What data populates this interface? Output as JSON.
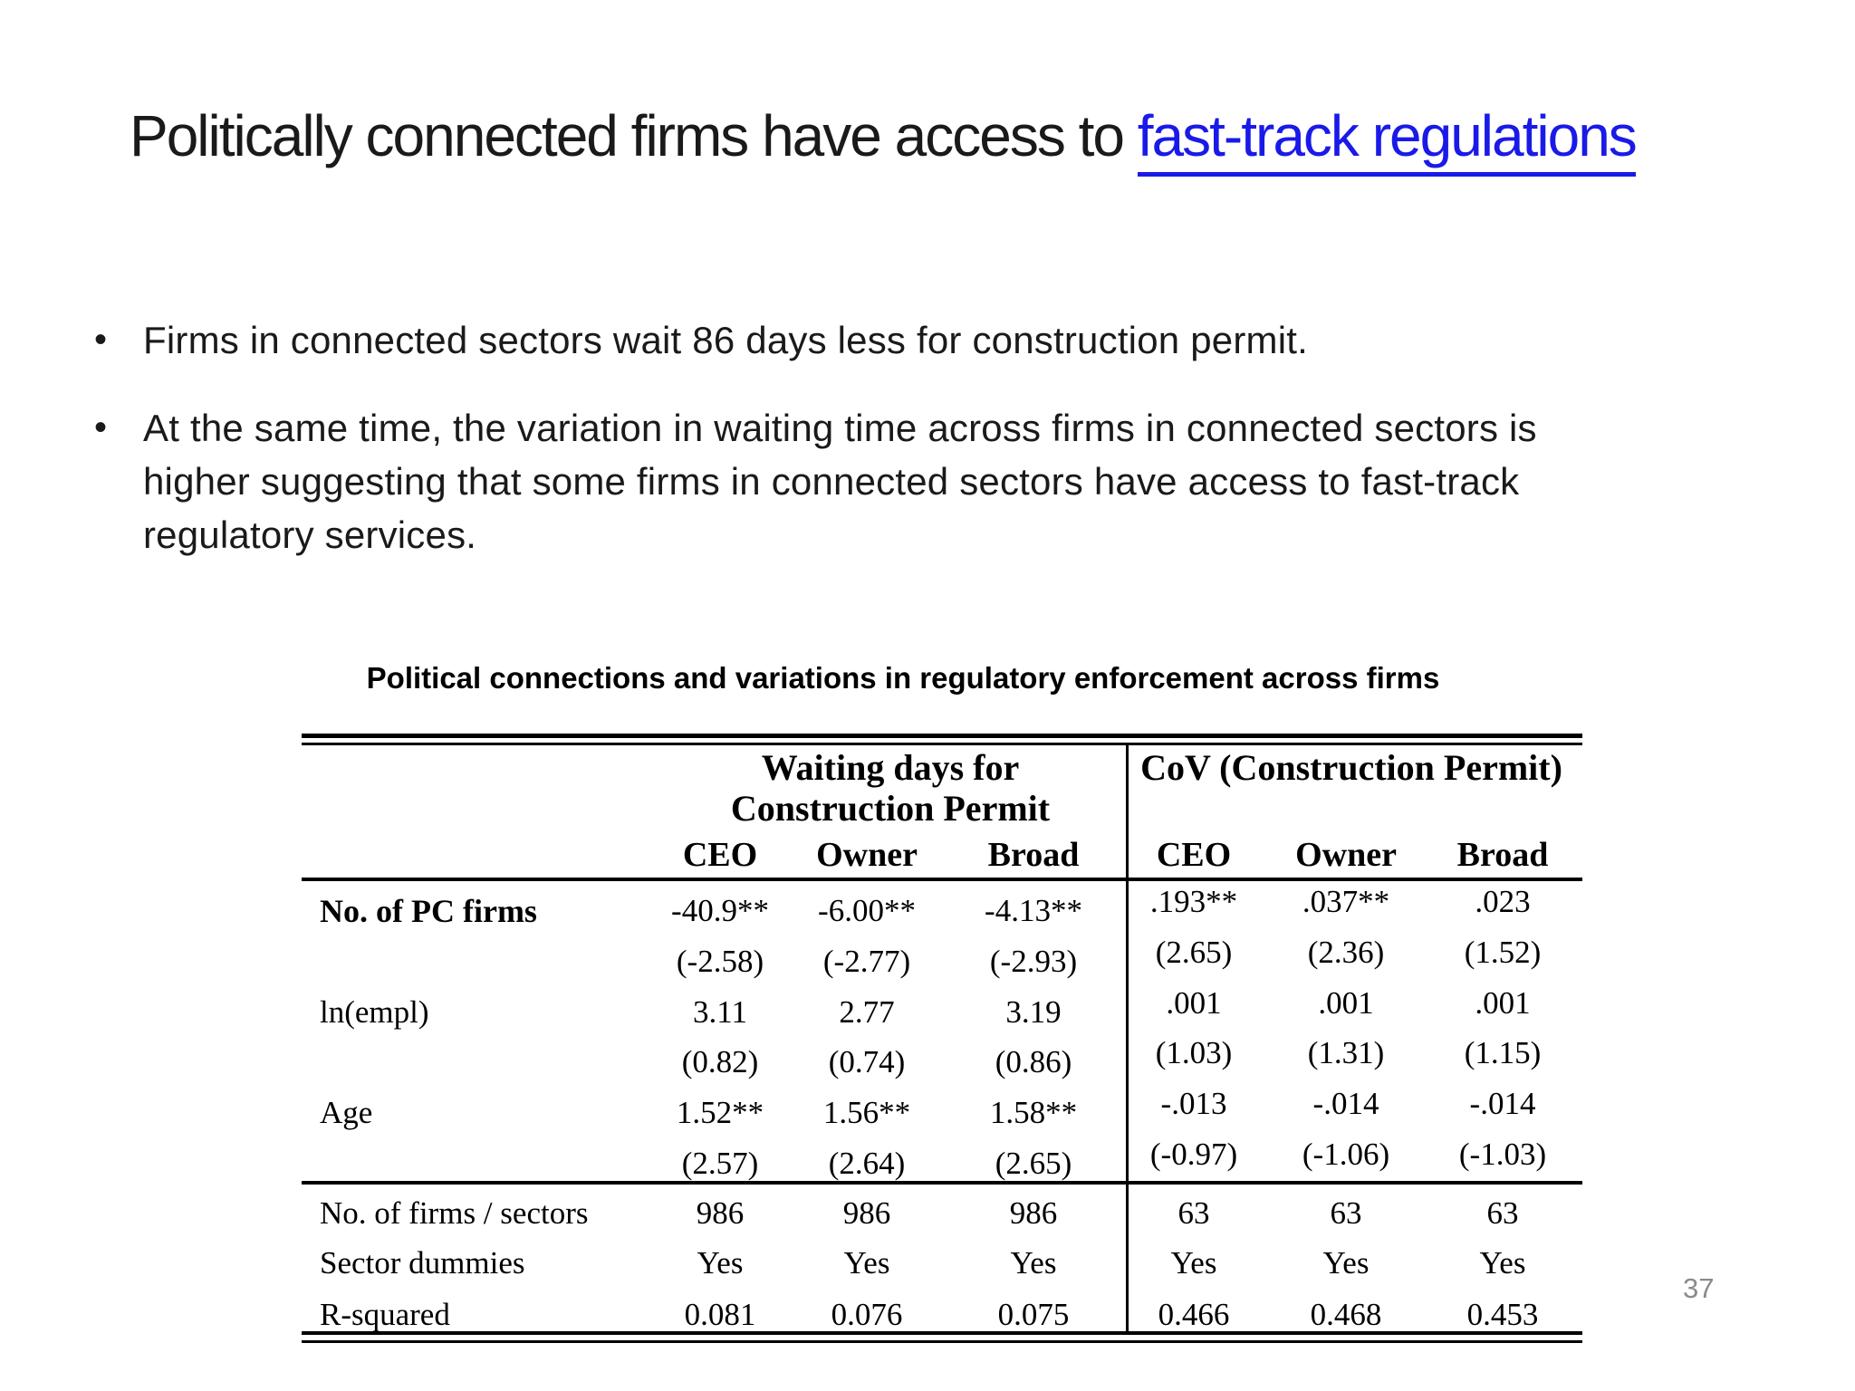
{
  "title": {
    "prefix": "Politically connected firms have access to ",
    "link": "fast-track regulations"
  },
  "bullet_glyph": "•",
  "bullets": [
    {
      "lines": [
        "Firms in connected sectors wait 86 days less for construction permit."
      ]
    },
    {
      "lines": [
        "At the same time, the variation in waiting time across firms in connected sectors is",
        "higher suggesting that some firms in connected sectors have access to fast-track",
        "regulatory services."
      ]
    }
  ],
  "table": {
    "caption": "Political connections and variations in regulatory enforcement across firms",
    "group_headers": {
      "waiting_line1": "Waiting days for",
      "waiting_line2": "Construction Permit",
      "cov": "CoV (Construction Permit)"
    },
    "col_headers": [
      "CEO",
      "Owner",
      "Broad",
      "CEO",
      "Owner",
      "Broad"
    ],
    "rows": [
      {
        "label": "No. of PC firms",
        "bold": true,
        "cells": [
          "-40.9**",
          "-6.00**",
          "-4.13**",
          ".193**",
          ".037**",
          ".023"
        ]
      },
      {
        "label": "",
        "bold": false,
        "cells": [
          "(-2.58)",
          "(-2.77)",
          "(-2.93)",
          "(2.65)",
          "(2.36)",
          "(1.52)"
        ]
      },
      {
        "label": "ln(empl)",
        "bold": false,
        "cells": [
          "3.11",
          "2.77",
          "3.19",
          ".001",
          ".001",
          ".001"
        ]
      },
      {
        "label": "",
        "bold": false,
        "cells": [
          "(0.82)",
          "(0.74)",
          "(0.86)",
          "(1.03)",
          "(1.31)",
          "(1.15)"
        ]
      },
      {
        "label": "Age",
        "bold": false,
        "cells": [
          "1.52**",
          "1.56**",
          "1.58**",
          "-.013",
          "-.014",
          "-.014"
        ]
      },
      {
        "label": "",
        "bold": false,
        "cells": [
          "(2.57)",
          "(2.64)",
          "(2.65)",
          "(-0.97)",
          "(-1.06)",
          "(-1.03)"
        ]
      }
    ],
    "footer_rows": [
      {
        "label": "No. of firms / sectors",
        "cells": [
          "986",
          "986",
          "986",
          "63",
          "63",
          "63"
        ]
      },
      {
        "label": "Sector dummies",
        "cells": [
          "Yes",
          "Yes",
          "Yes",
          "Yes",
          "Yes",
          "Yes"
        ]
      },
      {
        "label": "R-squared",
        "cells": [
          "0.081",
          "0.076",
          "0.075",
          "0.466",
          "0.468",
          "0.453"
        ]
      }
    ]
  },
  "page_number": "37",
  "colors": {
    "link_blue": "#1a1ae8",
    "page_number_grey": "#8a8a8a",
    "text": "#1a1a1a"
  }
}
